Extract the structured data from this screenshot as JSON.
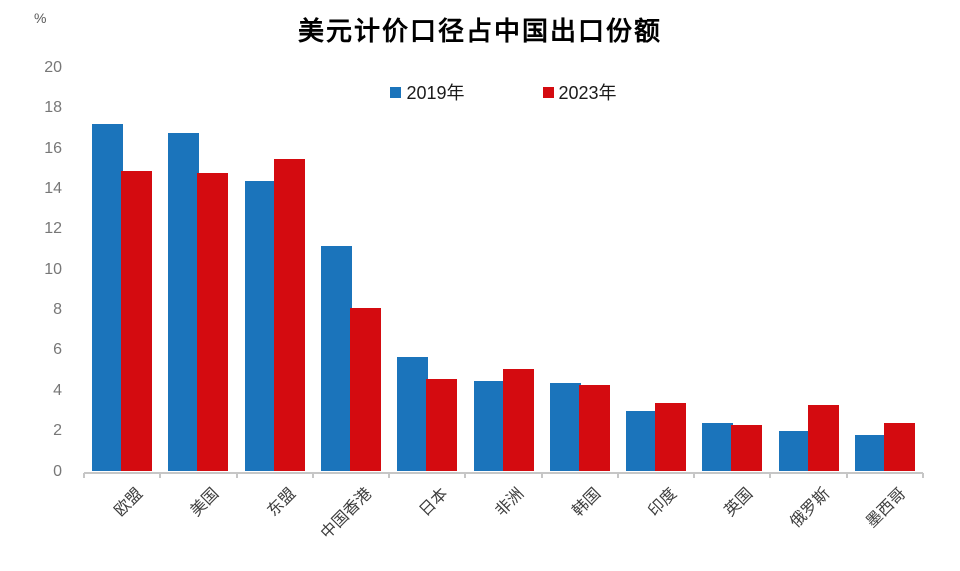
{
  "chart_data": {
    "type": "bar",
    "title": "美元计价口径占中国出口份额",
    "unit_label": "%",
    "categories": [
      "欧盟",
      "美国",
      "东盟",
      "中国香港",
      "日本",
      "非洲",
      "韩国",
      "印度",
      "英国",
      "俄罗斯",
      "墨西哥"
    ],
    "series": [
      {
        "name": "2019年",
        "color": "#1b74bb",
        "values": [
          17.2,
          16.8,
          14.4,
          11.2,
          5.7,
          4.5,
          4.4,
          3.0,
          2.4,
          2.0,
          1.8
        ]
      },
      {
        "name": "2023年",
        "color": "#d40b10",
        "values": [
          14.9,
          14.8,
          15.5,
          8.1,
          4.6,
          5.1,
          4.3,
          3.4,
          2.3,
          3.3,
          2.4
        ]
      }
    ],
    "ylim": [
      0,
      20
    ],
    "ytick_step": 2,
    "grid": false,
    "legend_position": "top-center",
    "axis_color": "#c6c6c6",
    "ylabel": "",
    "xlabel": ""
  }
}
